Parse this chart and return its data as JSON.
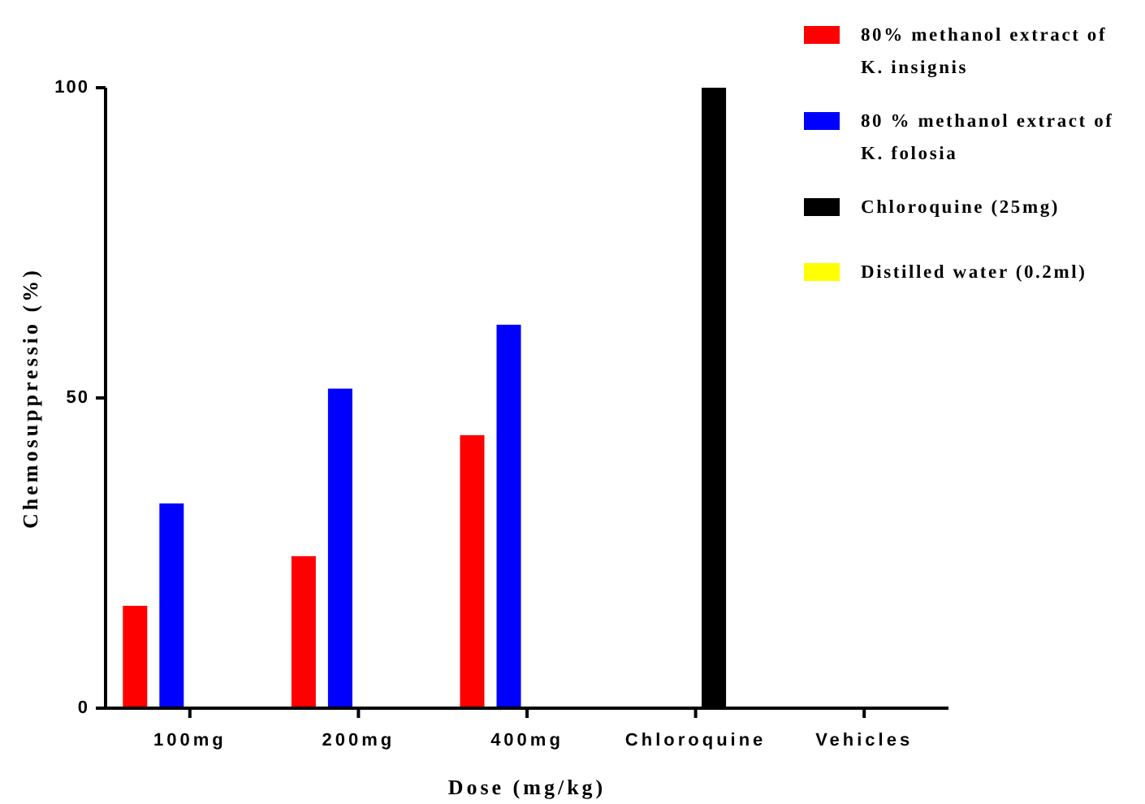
{
  "chart_data": {
    "type": "bar",
    "xlabel": "Dose (mg/kg)",
    "ylabel": "Chemosuppressio (%)",
    "categories": [
      "100mg",
      "200mg",
      "400mg",
      "Chloroquine",
      "Vehicles"
    ],
    "series": [
      {
        "name": "80% methanol extract of K. insignis",
        "color": "#ff0000",
        "values": [
          16.5,
          24.5,
          44,
          null,
          null
        ]
      },
      {
        "name": "80 % methanol extract of K. folosia",
        "color": "#0000ff",
        "values": [
          33,
          51.5,
          61.8,
          null,
          null
        ]
      },
      {
        "name": "Chloroquine (25mg)",
        "color": "#000000",
        "values": [
          null,
          null,
          null,
          100,
          null
        ]
      },
      {
        "name": "Distilled water (0.2ml)",
        "color": "#ffff00",
        "values": [
          null,
          null,
          null,
          null,
          0
        ]
      }
    ],
    "ylim": [
      0,
      100
    ],
    "yticks": [
      0,
      50,
      100
    ],
    "grid": false,
    "legend": "top right"
  }
}
